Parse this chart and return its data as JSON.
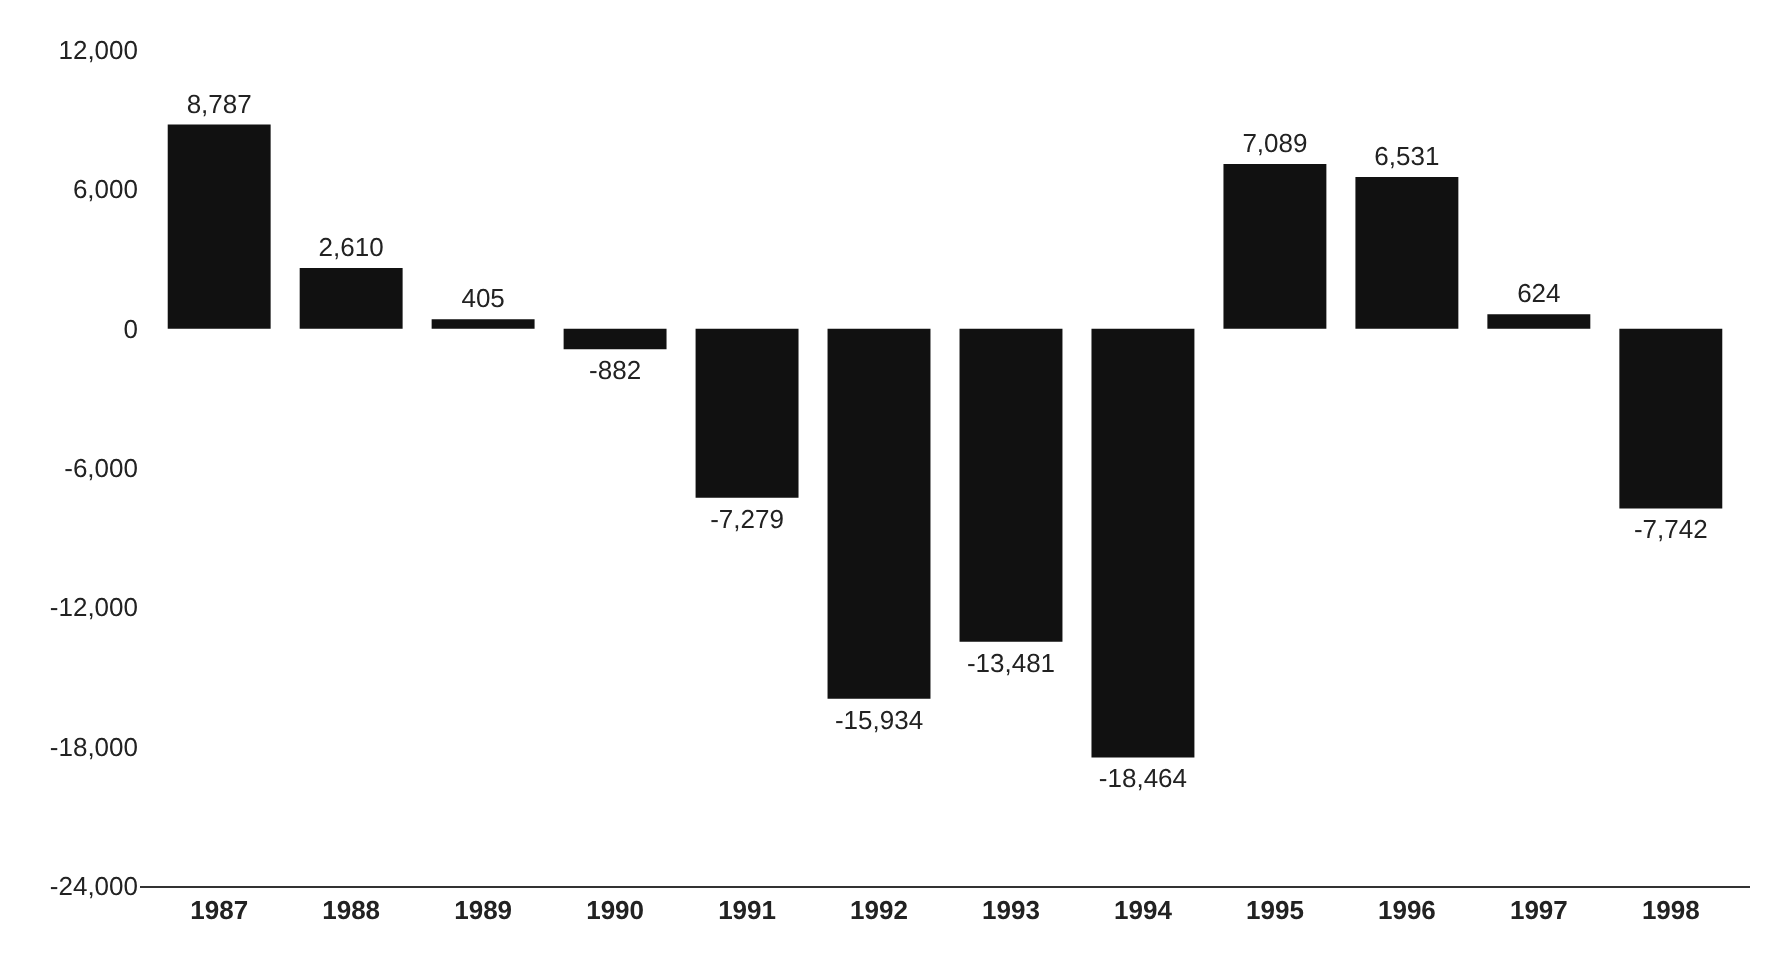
{
  "chart_data": {
    "type": "bar",
    "categories": [
      "1987",
      "1988",
      "1989",
      "1990",
      "1991",
      "1992",
      "1993",
      "1994",
      "1995",
      "1996",
      "1997",
      "1998"
    ],
    "values": [
      8787,
      2610,
      405,
      -882,
      -7279,
      -15934,
      -13481,
      -18464,
      7089,
      6531,
      624,
      -7742
    ],
    "value_labels": [
      "8,787",
      "2,610",
      "405",
      "-882",
      "-7,279",
      "-15,934",
      "-13,481",
      "-18,464",
      "7,089",
      "6,531",
      "624",
      "-7,742"
    ],
    "color": "#111111",
    "ylim": [
      -24000,
      12000
    ],
    "yticks": [
      {
        "value": 12000,
        "label": "12,000"
      },
      {
        "value": 6000,
        "label": "6,000"
      },
      0,
      {
        "value": -6000,
        "label": "-6,000"
      },
      {
        "value": -12000,
        "label": "-12,000"
      },
      {
        "value": -18000,
        "label": "-18,000"
      },
      {
        "value": -24000,
        "label": "-24,000"
      }
    ]
  }
}
